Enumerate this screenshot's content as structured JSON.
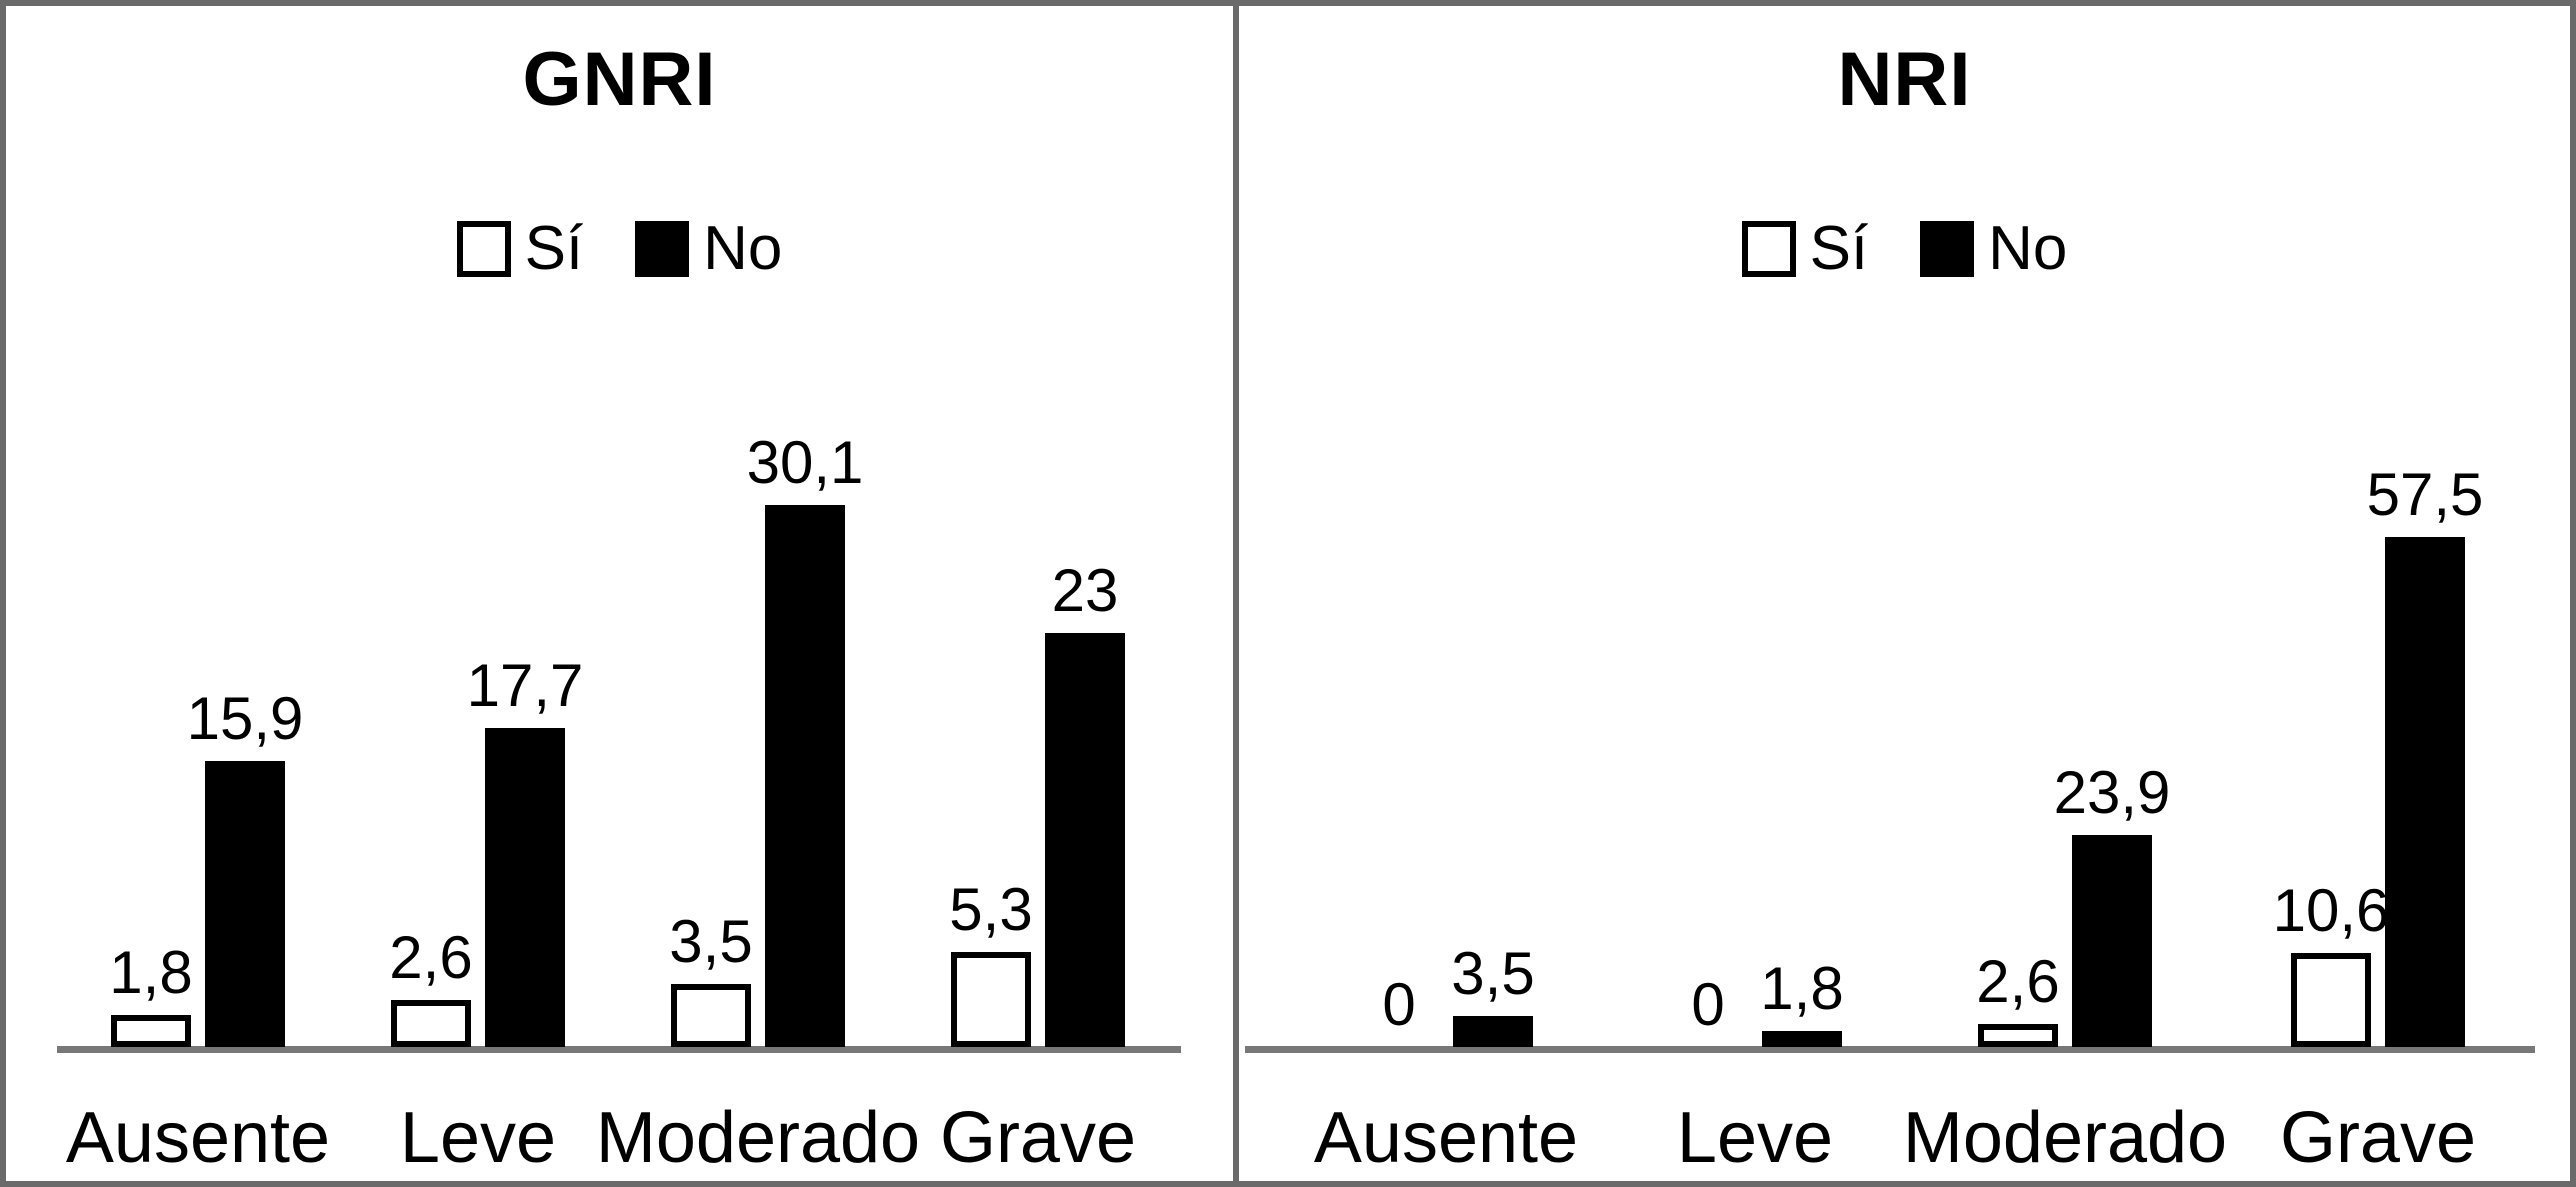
{
  "figure": {
    "frame_color": "#6a6a6a",
    "background": "#ffffff",
    "text_color": "#000000"
  },
  "legend": {
    "si": "Sí",
    "no": "No",
    "si_swatch_style": "white square with black border",
    "no_swatch_style": "solid black square"
  },
  "colors": {
    "bar_si_fill": "#ffffff",
    "bar_si_border": "#000000",
    "bar_no_fill": "#000000",
    "axis_line": "#787878",
    "divider": "#6a6a6a"
  },
  "chart_data": [
    {
      "type": "bar",
      "title": "GNRI",
      "categories": [
        "Ausente",
        "Leve",
        "Moderado",
        "Grave"
      ],
      "series": [
        {
          "name": "Sí",
          "values": [
            1.8,
            2.6,
            3.5,
            5.3
          ],
          "labels": [
            "1,8",
            "2,6",
            "3,5",
            "5,3"
          ]
        },
        {
          "name": "No",
          "values": [
            15.9,
            17.7,
            30.1,
            23
          ],
          "labels": [
            "15,9",
            "17,7",
            "30,1",
            "23"
          ]
        }
      ],
      "legend_position": "top-center",
      "grid": false,
      "y_axis_shown": false,
      "value_labels": "above each bar, comma as decimal separator"
    },
    {
      "type": "bar",
      "title": "NRI",
      "categories": [
        "Ausente",
        "Leve",
        "Moderado",
        "Grave"
      ],
      "series": [
        {
          "name": "Sí",
          "values": [
            0,
            0,
            2.6,
            10.6
          ],
          "labels": [
            "0",
            "0",
            "2,6",
            "10,6"
          ]
        },
        {
          "name": "No",
          "values": [
            3.5,
            1.8,
            23.9,
            57.5
          ],
          "labels": [
            "3,5",
            "1,8",
            "23,9",
            "57,5"
          ]
        }
      ],
      "legend_position": "top-center",
      "grid": false,
      "y_axis_shown": false,
      "value_labels": "above each bar, comma as decimal separator; 0 shown where bar absent"
    }
  ]
}
